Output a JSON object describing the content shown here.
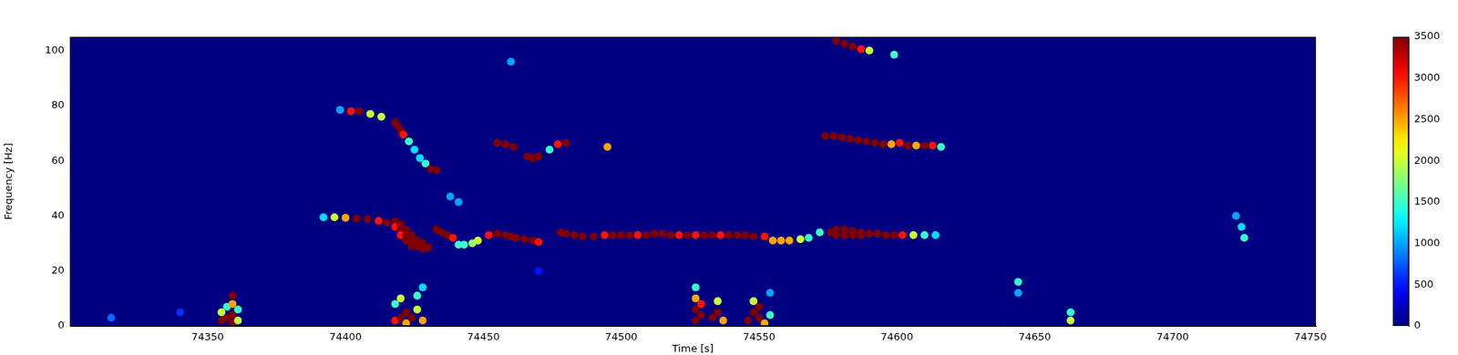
{
  "chart_data": {
    "type": "heatmap",
    "xlabel": "Time [s]",
    "ylabel": "Frequency [Hz]",
    "xlim": [
      74300,
      74752
    ],
    "xticks": [
      74350,
      74400,
      74450,
      74500,
      74550,
      74600,
      74650,
      74700,
      74750
    ],
    "ylim": [
      0,
      105
    ],
    "yticks": [
      0,
      20,
      40,
      60,
      80,
      100
    ],
    "grid": false,
    "colorbar": {
      "range": [
        0,
        3500
      ],
      "ticks": [
        0,
        500,
        1000,
        1500,
        2000,
        2500,
        3000,
        3500
      ]
    },
    "cells": [
      [
        74315,
        3,
        800
      ],
      [
        74340,
        5,
        600
      ],
      [
        74470,
        20,
        500
      ],
      [
        74441,
        45,
        1000
      ],
      [
        74438,
        47,
        1000
      ],
      [
        74460,
        96,
        1000
      ],
      [
        74392,
        39.5,
        1200
      ],
      [
        74396,
        39.5,
        2000
      ],
      [
        74400,
        39.3,
        2500
      ],
      [
        74404,
        39,
        3500
      ],
      [
        74408,
        38.8,
        3500
      ],
      [
        74412,
        38.2,
        3000
      ],
      [
        74415,
        37.5,
        3500
      ],
      [
        74418,
        38,
        3500
      ],
      [
        74418,
        36,
        3000
      ],
      [
        74420,
        37,
        3500
      ],
      [
        74420,
        35,
        3500
      ],
      [
        74420,
        33,
        3000
      ],
      [
        74422,
        35,
        3500
      ],
      [
        74422,
        33,
        3500
      ],
      [
        74422,
        31,
        3500
      ],
      [
        74424,
        33,
        3500
      ],
      [
        74424,
        31,
        3500
      ],
      [
        74424,
        29,
        3500
      ],
      [
        74426,
        31,
        3500
      ],
      [
        74426,
        29,
        3500
      ],
      [
        74428,
        30,
        3500
      ],
      [
        74428,
        28,
        3500
      ],
      [
        74430,
        28.5,
        3500
      ],
      [
        74433,
        35,
        3500
      ],
      [
        74435,
        34,
        3500
      ],
      [
        74437,
        33,
        3500
      ],
      [
        74439,
        32,
        3000
      ],
      [
        74441,
        29.5,
        1500
      ],
      [
        74443,
        29.5,
        1500
      ],
      [
        74446,
        30,
        1800
      ],
      [
        74448,
        31,
        2000
      ],
      [
        74452,
        33,
        3000
      ],
      [
        74455,
        33.5,
        3500
      ],
      [
        74458,
        33,
        3500
      ],
      [
        74460,
        32.5,
        3500
      ],
      [
        74462,
        32,
        3500
      ],
      [
        74465,
        31.5,
        3500
      ],
      [
        74468,
        31,
        3500
      ],
      [
        74470,
        30.5,
        3000
      ],
      [
        74478,
        34,
        3500
      ],
      [
        74480,
        33.5,
        3500
      ],
      [
        74483,
        33,
        3500
      ],
      [
        74486,
        32.5,
        3500
      ],
      [
        74490,
        32.5,
        3500
      ],
      [
        74494,
        33,
        3000
      ],
      [
        74497,
        33,
        3500
      ],
      [
        74500,
        33,
        3500
      ],
      [
        74503,
        33,
        3500
      ],
      [
        74506,
        33,
        3000
      ],
      [
        74509,
        33,
        3500
      ],
      [
        74512,
        33.5,
        3500
      ],
      [
        74515,
        33.5,
        3500
      ],
      [
        74518,
        33,
        3500
      ],
      [
        74521,
        33,
        3000
      ],
      [
        74524,
        33,
        3500
      ],
      [
        74527,
        33,
        3000
      ],
      [
        74530,
        33,
        3500
      ],
      [
        74533,
        33,
        3500
      ],
      [
        74536,
        33,
        3000
      ],
      [
        74539,
        33,
        3500
      ],
      [
        74542,
        33,
        3500
      ],
      [
        74545,
        33,
        3500
      ],
      [
        74548,
        32.5,
        3500
      ],
      [
        74552,
        32.5,
        3000
      ],
      [
        74555,
        31,
        2500
      ],
      [
        74558,
        31,
        2500
      ],
      [
        74561,
        31,
        2500
      ],
      [
        74565,
        31.5,
        2000
      ],
      [
        74568,
        32,
        1500
      ],
      [
        74572,
        34,
        1500
      ],
      [
        74576,
        34,
        3500
      ],
      [
        74578,
        35,
        3500
      ],
      [
        74578,
        33,
        3500
      ],
      [
        74581,
        35,
        3500
      ],
      [
        74581,
        33,
        3500
      ],
      [
        74584,
        34.5,
        3500
      ],
      [
        74584,
        33,
        3500
      ],
      [
        74587,
        34,
        3500
      ],
      [
        74587,
        33,
        3500
      ],
      [
        74590,
        33.5,
        3500
      ],
      [
        74593,
        33.5,
        3500
      ],
      [
        74596,
        33,
        3500
      ],
      [
        74599,
        33,
        3500
      ],
      [
        74602,
        33,
        3000
      ],
      [
        74606,
        33,
        2000
      ],
      [
        74610,
        33,
        1500
      ],
      [
        74614,
        33,
        1200
      ],
      [
        74398,
        78.5,
        1000
      ],
      [
        74402,
        78,
        3000
      ],
      [
        74405,
        78,
        3500
      ],
      [
        74409,
        77,
        2000
      ],
      [
        74413,
        76,
        2000
      ],
      [
        74418,
        74,
        3500
      ],
      [
        74419,
        72.5,
        3500
      ],
      [
        74420,
        71,
        3500
      ],
      [
        74421,
        69.5,
        3000
      ],
      [
        74423,
        67,
        1500
      ],
      [
        74425,
        64,
        1200
      ],
      [
        74427,
        61,
        1200
      ],
      [
        74429,
        59,
        1500
      ],
      [
        74431,
        57,
        3500
      ],
      [
        74433,
        56.5,
        3500
      ],
      [
        74455,
        66.5,
        3500
      ],
      [
        74458,
        66,
        3500
      ],
      [
        74461,
        65,
        3500
      ],
      [
        74466,
        61.5,
        3500
      ],
      [
        74468,
        61,
        3500
      ],
      [
        74470,
        61.5,
        3500
      ],
      [
        74474,
        64,
        1500
      ],
      [
        74477,
        66,
        3000
      ],
      [
        74480,
        66.5,
        3500
      ],
      [
        74495,
        65,
        2500
      ],
      [
        74574,
        69,
        3500
      ],
      [
        74577,
        69,
        3500
      ],
      [
        74580,
        68.5,
        3500
      ],
      [
        74583,
        68,
        3500
      ],
      [
        74586,
        67.5,
        3500
      ],
      [
        74589,
        67,
        3500
      ],
      [
        74592,
        66.5,
        3500
      ],
      [
        74595,
        66,
        3500
      ],
      [
        74598,
        66,
        2500
      ],
      [
        74601,
        66.5,
        3000
      ],
      [
        74604,
        65.5,
        3500
      ],
      [
        74607,
        65.5,
        2500
      ],
      [
        74610,
        65.5,
        3500
      ],
      [
        74613,
        65.5,
        3000
      ],
      [
        74616,
        65,
        1500
      ],
      [
        74578,
        103.5,
        3500
      ],
      [
        74581,
        102.5,
        3500
      ],
      [
        74584,
        101.5,
        3500
      ],
      [
        74587,
        100.5,
        3000
      ],
      [
        74590,
        100,
        2000
      ],
      [
        74599,
        98.5,
        1500
      ],
      [
        74355,
        2,
        3500
      ],
      [
        74355,
        5,
        2000
      ],
      [
        74357,
        3,
        3500
      ],
      [
        74357,
        7,
        1500
      ],
      [
        74359,
        1,
        3500
      ],
      [
        74359,
        4,
        3500
      ],
      [
        74359,
        8,
        2500
      ],
      [
        74359,
        11,
        3500
      ],
      [
        74361,
        2,
        2000
      ],
      [
        74361,
        6,
        1500
      ],
      [
        74418,
        2,
        3000
      ],
      [
        74418,
        8,
        1500
      ],
      [
        74420,
        3,
        3500
      ],
      [
        74420,
        10,
        2000
      ],
      [
        74422,
        5,
        3500
      ],
      [
        74422,
        1,
        2500
      ],
      [
        74424,
        3,
        3500
      ],
      [
        74426,
        6,
        2000
      ],
      [
        74426,
        11,
        1500
      ],
      [
        74428,
        2,
        2500
      ],
      [
        74428,
        14,
        1200
      ],
      [
        74527,
        2,
        3500
      ],
      [
        74527,
        6,
        3500
      ],
      [
        74527,
        10,
        2500
      ],
      [
        74527,
        14,
        1500
      ],
      [
        74529,
        4,
        3500
      ],
      [
        74529,
        8,
        3000
      ],
      [
        74533,
        3,
        3500
      ],
      [
        74535,
        5,
        3500
      ],
      [
        74535,
        9,
        2000
      ],
      [
        74537,
        2,
        2500
      ],
      [
        74546,
        2,
        3500
      ],
      [
        74548,
        5,
        3500
      ],
      [
        74548,
        9,
        2000
      ],
      [
        74550,
        3,
        3500
      ],
      [
        74550,
        7,
        3500
      ],
      [
        74552,
        1,
        2500
      ],
      [
        74554,
        4,
        1500
      ],
      [
        74554,
        12,
        1000
      ],
      [
        74644,
        16,
        1500
      ],
      [
        74644,
        12,
        1000
      ],
      [
        74663,
        2,
        2000
      ],
      [
        74663,
        5,
        1500
      ],
      [
        74723,
        40,
        1000
      ],
      [
        74725,
        36,
        1200
      ],
      [
        74726,
        32,
        1500
      ]
    ]
  }
}
